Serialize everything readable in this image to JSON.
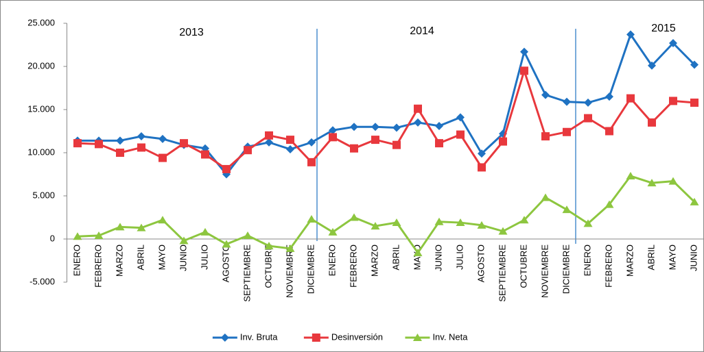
{
  "chart_data": {
    "type": "line",
    "annotations": [
      "2013",
      "2014",
      "2015"
    ],
    "categories": [
      "ENERO",
      "FEBRERO",
      "MARZO",
      "ABRIL",
      "MAYO",
      "JUNIO",
      "JULIO",
      "AGOSTO",
      "SEPTIEMBRE",
      "OCTUBRE",
      "NOVIEMBRE",
      "DICIEMBRE",
      "ENERO",
      "FEBRERO",
      "MARZO",
      "ABRIL",
      "MAYO",
      "JUNIO",
      "JULIO",
      "AGOSTO",
      "SEPTIEMBRE",
      "OCTUBRE",
      "NOVIEMBRE",
      "DICIEMBRE",
      "ENERO",
      "FEBRERO",
      "MARZO",
      "ABRIL",
      "MAYO",
      "JUNIO"
    ],
    "series": [
      {
        "name": "Inv. Bruta",
        "color": "#1f72c2",
        "marker": "diamond",
        "values": [
          11400,
          11400,
          11400,
          11900,
          11600,
          10900,
          10500,
          7500,
          10700,
          11200,
          10400,
          11200,
          12600,
          13000,
          13000,
          12900,
          13500,
          13100,
          14100,
          9900,
          12200,
          21700,
          16700,
          15900,
          15800,
          16500,
          23700,
          20100,
          22700,
          20200
        ]
      },
      {
        "name": "Desinversión",
        "color": "#e8383d",
        "marker": "square",
        "values": [
          11100,
          11000,
          10000,
          10600,
          9400,
          11100,
          9800,
          8100,
          10300,
          12000,
          11500,
          8900,
          11800,
          10500,
          11500,
          10900,
          15100,
          11100,
          12100,
          8300,
          11300,
          19500,
          11900,
          12400,
          14000,
          12500,
          16300,
          13500,
          16000,
          15800
        ]
      },
      {
        "name": "Inv. Neta",
        "color": "#8dc63f",
        "marker": "triangle",
        "values": [
          300,
          400,
          1400,
          1300,
          2200,
          -200,
          800,
          -600,
          400,
          -800,
          -1100,
          2300,
          800,
          2500,
          1500,
          1900,
          -1600,
          2000,
          1900,
          1600,
          900,
          2200,
          4800,
          3400,
          1800,
          4000,
          7300,
          6500,
          6700,
          4300
        ]
      }
    ],
    "ylim": [
      -5000,
      25000
    ],
    "yticks": [
      {
        "value": -5000,
        "label": "-5.000"
      },
      0,
      {
        "value": 5000,
        "label": "5.000"
      },
      {
        "value": 10000,
        "label": "10.000"
      },
      {
        "value": 15000,
        "label": "15.000"
      },
      {
        "value": 20000,
        "label": "20.000"
      },
      {
        "value": 25000,
        "label": "25.000"
      }
    ],
    "legend": "bottom"
  }
}
